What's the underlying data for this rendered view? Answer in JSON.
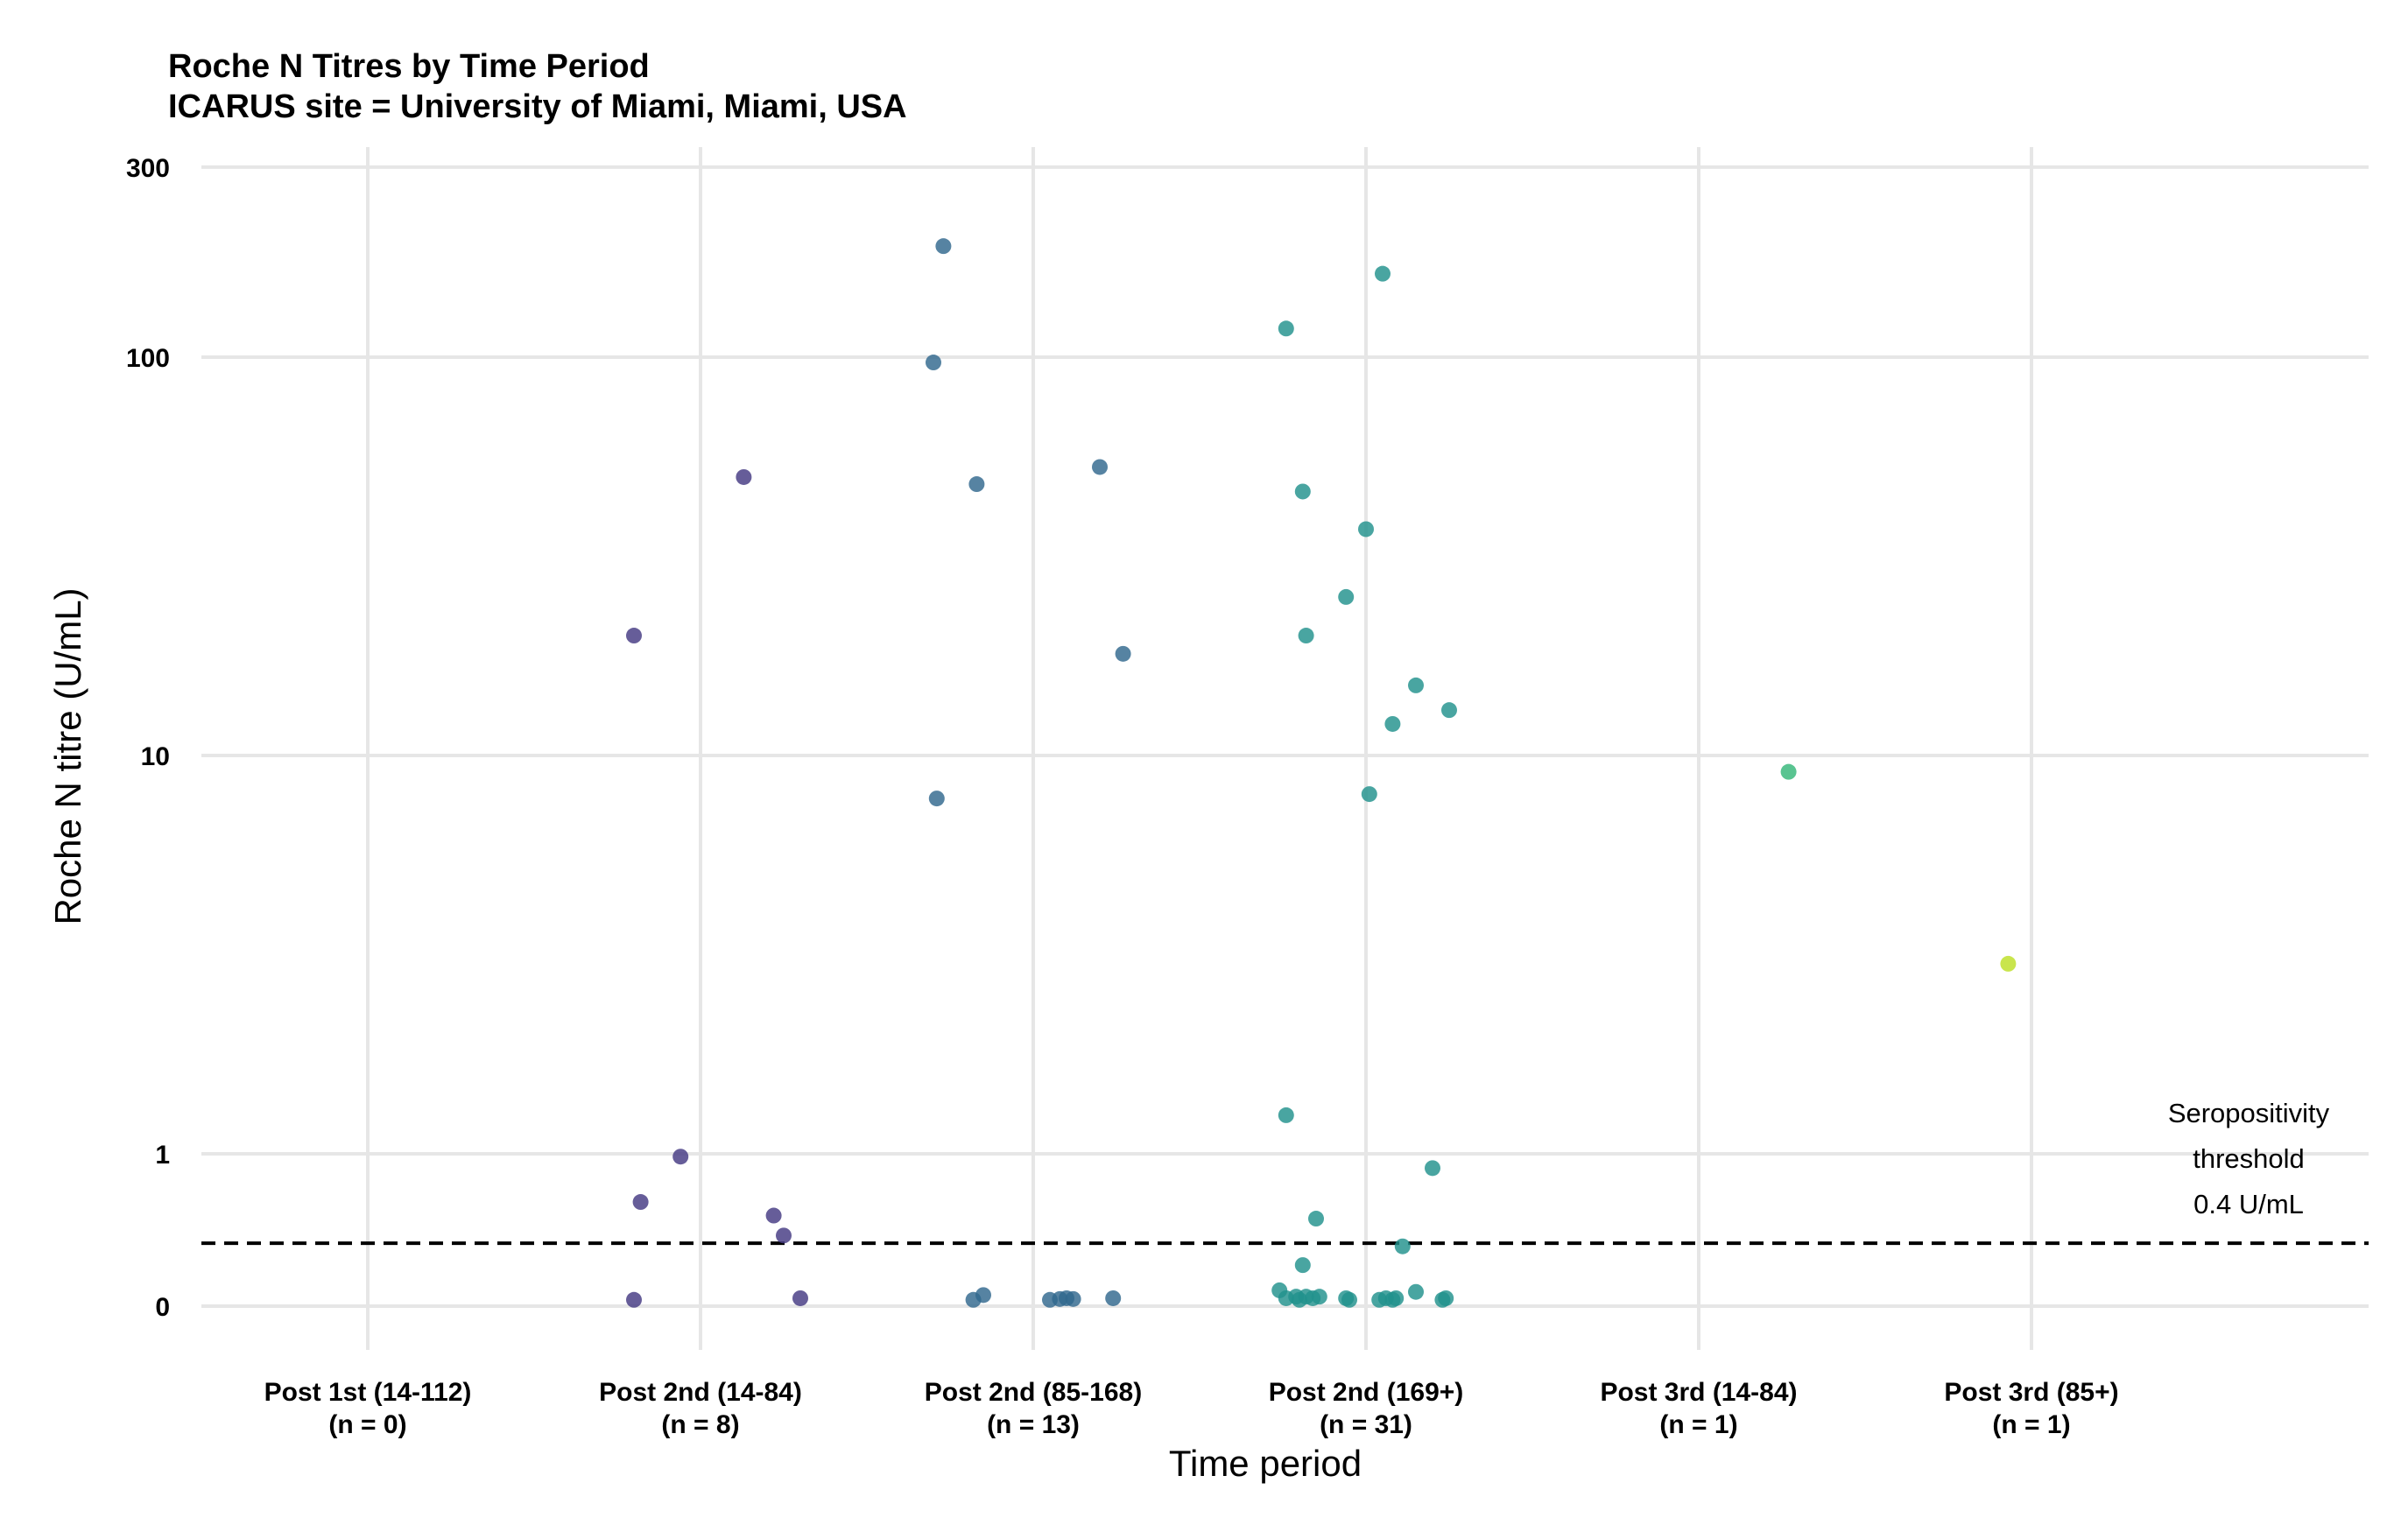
{
  "chart_data": {
    "type": "scatter",
    "title": "Roche N Titres by Time Period",
    "subtitle": "ICARUS site = University of Miami, Miami, USA",
    "xlabel": "Time period",
    "ylabel": "Roche N titre (U/mL)",
    "y_scale": "pseudo-log",
    "ylim": [
      -0.03,
      600
    ],
    "y_ticks": [
      {
        "value": 0,
        "label": "0"
      },
      {
        "value": 1,
        "label": "1"
      },
      {
        "value": 10,
        "label": "10"
      },
      {
        "value": 100,
        "label": "100"
      },
      {
        "value": 300,
        "label": "300"
      }
    ],
    "grid": true,
    "categories": [
      {
        "name": "Post 1st (14-112)",
        "count_label": "(n = 0)",
        "color": "#440154"
      },
      {
        "name": "Post 2nd (14-84)",
        "count_label": "(n = 8)",
        "color": "#443983"
      },
      {
        "name": "Post 2nd (85-168)",
        "count_label": "(n = 13)",
        "color": "#31688e"
      },
      {
        "name": "Post 2nd (169+)",
        "count_label": "(n = 31)",
        "color": "#21918c"
      },
      {
        "name": "Post 3rd (14-84)",
        "count_label": "(n = 1)",
        "color": "#35b779"
      },
      {
        "name": "Post 3rd (85+)",
        "count_label": "(n = 1)",
        "color": "#bddf26"
      }
    ],
    "points": [
      {
        "category": 1,
        "jitter": -0.2,
        "y": 20
      },
      {
        "category": 1,
        "jitter": 0.13,
        "y": 50
      },
      {
        "category": 1,
        "jitter": -0.06,
        "y": 0.98
      },
      {
        "category": 1,
        "jitter": -0.18,
        "y": 0.67
      },
      {
        "category": 1,
        "jitter": 0.22,
        "y": 0.58
      },
      {
        "category": 1,
        "jitter": 0.25,
        "y": 0.45
      },
      {
        "category": 1,
        "jitter": -0.2,
        "y": 0.04
      },
      {
        "category": 1,
        "jitter": 0.3,
        "y": 0.05
      },
      {
        "category": 2,
        "jitter": -0.27,
        "y": 190
      },
      {
        "category": 2,
        "jitter": -0.3,
        "y": 97
      },
      {
        "category": 2,
        "jitter": -0.17,
        "y": 48
      },
      {
        "category": 2,
        "jitter": 0.2,
        "y": 53
      },
      {
        "category": 2,
        "jitter": 0.27,
        "y": 18
      },
      {
        "category": 2,
        "jitter": -0.29,
        "y": 7.8
      },
      {
        "category": 2,
        "jitter": -0.18,
        "y": 0.04
      },
      {
        "category": 2,
        "jitter": -0.15,
        "y": 0.07
      },
      {
        "category": 2,
        "jitter": 0.05,
        "y": 0.04
      },
      {
        "category": 2,
        "jitter": 0.08,
        "y": 0.045
      },
      {
        "category": 2,
        "jitter": 0.1,
        "y": 0.05
      },
      {
        "category": 2,
        "jitter": 0.12,
        "y": 0.045
      },
      {
        "category": 2,
        "jitter": 0.24,
        "y": 0.05
      },
      {
        "category": 3,
        "jitter": 0.05,
        "y": 162
      },
      {
        "category": 3,
        "jitter": -0.24,
        "y": 118
      },
      {
        "category": 3,
        "jitter": -0.19,
        "y": 46
      },
      {
        "category": 3,
        "jitter": 0.0,
        "y": 37
      },
      {
        "category": 3,
        "jitter": -0.06,
        "y": 25
      },
      {
        "category": 3,
        "jitter": -0.18,
        "y": 20
      },
      {
        "category": 3,
        "jitter": 0.15,
        "y": 15
      },
      {
        "category": 3,
        "jitter": 0.25,
        "y": 13
      },
      {
        "category": 3,
        "jitter": 0.08,
        "y": 12
      },
      {
        "category": 3,
        "jitter": 0.01,
        "y": 8
      },
      {
        "category": 3,
        "jitter": -0.24,
        "y": 1.25
      },
      {
        "category": 3,
        "jitter": 0.2,
        "y": 0.9
      },
      {
        "category": 3,
        "jitter": -0.15,
        "y": 0.56
      },
      {
        "category": 3,
        "jitter": 0.11,
        "y": 0.38
      },
      {
        "category": 3,
        "jitter": -0.19,
        "y": 0.26
      },
      {
        "category": 3,
        "jitter": -0.26,
        "y": 0.1
      },
      {
        "category": 3,
        "jitter": -0.24,
        "y": 0.05
      },
      {
        "category": 3,
        "jitter": -0.21,
        "y": 0.06
      },
      {
        "category": 3,
        "jitter": -0.2,
        "y": 0.04
      },
      {
        "category": 3,
        "jitter": -0.18,
        "y": 0.06
      },
      {
        "category": 3,
        "jitter": -0.16,
        "y": 0.05
      },
      {
        "category": 3,
        "jitter": -0.14,
        "y": 0.06
      },
      {
        "category": 3,
        "jitter": -0.06,
        "y": 0.05
      },
      {
        "category": 3,
        "jitter": -0.05,
        "y": 0.04
      },
      {
        "category": 3,
        "jitter": 0.04,
        "y": 0.04
      },
      {
        "category": 3,
        "jitter": 0.06,
        "y": 0.05
      },
      {
        "category": 3,
        "jitter": 0.08,
        "y": 0.04
      },
      {
        "category": 3,
        "jitter": 0.09,
        "y": 0.05
      },
      {
        "category": 3,
        "jitter": 0.15,
        "y": 0.09
      },
      {
        "category": 3,
        "jitter": 0.23,
        "y": 0.04
      },
      {
        "category": 3,
        "jitter": 0.24,
        "y": 0.05
      },
      {
        "category": 4,
        "jitter": 0.27,
        "y": 9.1
      },
      {
        "category": 5,
        "jitter": -0.07,
        "y": 3.0
      }
    ],
    "reference_line": {
      "y": 0.4,
      "style": "dashed",
      "label_lines": [
        "Seropositivity",
        "threshold",
        "0.4 U/mL"
      ]
    }
  }
}
